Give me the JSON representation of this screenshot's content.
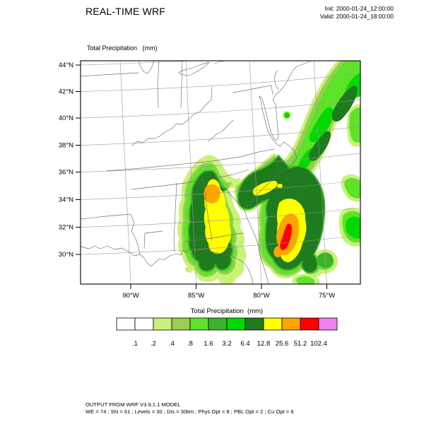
{
  "header": {
    "title": "REAL-TIME WRF",
    "init_label": "Init: 2000-01-24_12:00:00",
    "valid_label": "Valid: 2000-01-24_18:00:00"
  },
  "map": {
    "title": "Total Precipitation   (mm)",
    "lat_ticks": [
      "44°N",
      "42°N",
      "40°N",
      "38°N",
      "36°N",
      "34°N",
      "32°N",
      "30°N"
    ],
    "lon_ticks": [
      "90°W",
      "85°W",
      "80°W",
      "75°W"
    ]
  },
  "colorbar": {
    "title": "Total Precipitation  (mm)",
    "labels": [
      ".1",
      ".2",
      ".4",
      ".8",
      "1.6",
      "3.2",
      "6.4",
      "12.8",
      "25.6",
      "51.2",
      "102.4"
    ],
    "colors": [
      "#ffffff",
      "#ffffff",
      "#c8f278",
      "#9bce52",
      "#5de329",
      "#3eb229",
      "#00da00",
      "#1e7b1e",
      "#ffff00",
      "#ffa500",
      "#ff0000",
      "#ee82ee"
    ]
  },
  "footer": {
    "line1": "OUTPUT FROM WRF V3.9.1.1 MODEL",
    "line2": "WE = 74 ; SN = 61 ; Levels = 30 ; Dis = 30km ; Phys Opt = 8 ; PBL Opt = 2 ; Cu Opt = 6"
  },
  "chart_data": {
    "type": "heatmap",
    "subtype": "filled_contour_map",
    "title": "Total Precipitation (mm)",
    "variable": "Total Precipitation",
    "units": "mm",
    "init_time": "2000-01-24_12:00:00",
    "valid_time": "2000-01-24_18:00:00",
    "map_extent": {
      "lat_ticks_deg_n": [
        44,
        42,
        40,
        38,
        36,
        34,
        32,
        30
      ],
      "lon_ticks_deg_w": [
        90,
        85,
        80,
        75
      ]
    },
    "contour_levels_mm": [
      0.1,
      0.2,
      0.4,
      0.8,
      1.6,
      3.2,
      6.4,
      12.8,
      25.6,
      51.2,
      102.4
    ],
    "level_colors": [
      "#ffffff",
      "#ffffff",
      "#c8f278",
      "#9bce52",
      "#5de329",
      "#3eb229",
      "#00da00",
      "#1e7b1e",
      "#ffff00",
      "#ffa500",
      "#ff0000",
      "#ee82ee"
    ],
    "features": [
      {
        "name": "west precipitation core",
        "approx_location": "southern Mississippi / Alabama, ~31-34N 88-87W",
        "peak_band_mm": "25.6-51.2 (orange)"
      },
      {
        "name": "east precipitation core",
        "approx_location": "Atlantic off Georgia / NE Florida, ~30-33N 79-78W",
        "peak_band_mm": "51.2-102.4 (red streak)"
      },
      {
        "name": "northeast band",
        "approx_location": "band of 0.4-12.8 mm extending northeast toward upper-right corner of domain"
      },
      {
        "name": "connecting band",
        "approx_location": "6.4-25.6 mm bridge between the two cores, ~33N 83-80W"
      }
    ],
    "legend_position": "bottom",
    "grid": "lat/lon graticule on, light gray"
  }
}
